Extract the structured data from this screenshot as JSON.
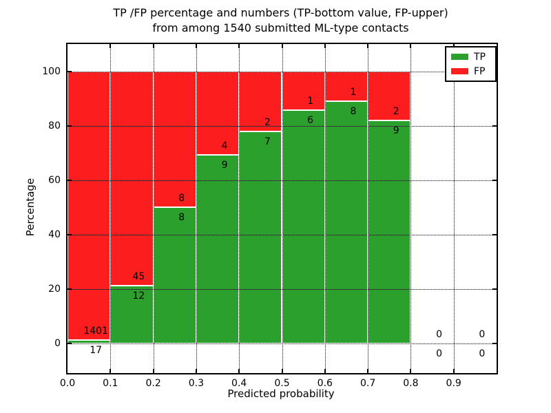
{
  "title": {
    "line1": "TP /FP percentage and numbers (TP-bottom value, FP-upper)",
    "line2": "from among 1540 submitted ML-type contacts"
  },
  "axes": {
    "xlabel": "Predicted probability",
    "ylabel": "Percentage",
    "ytick_labels": [
      "0",
      "20",
      "40",
      "60",
      "80",
      "100"
    ],
    "ytick_values": [
      0,
      20,
      40,
      60,
      80,
      100
    ],
    "xtick_labels": [
      "0.0",
      "0.1",
      "0.2",
      "0.3",
      "0.4",
      "0.5",
      "0.6",
      "0.7",
      "0.8",
      "0.9"
    ],
    "xtick_values": [
      0.0,
      0.1,
      0.2,
      0.3,
      0.4,
      0.5,
      0.6,
      0.7,
      0.8,
      0.9
    ]
  },
  "legend": {
    "items": [
      {
        "label": "TP",
        "color": "#2ca02c"
      },
      {
        "label": "FP",
        "color": "#fc1e1e"
      }
    ]
  },
  "colors": {
    "tp": "#2ca02c",
    "fp": "#fc1e1e",
    "grid": "#000000",
    "bar_edge": "#ffffff",
    "background": "#ffffff"
  },
  "chart_data": {
    "type": "bar",
    "stacked": true,
    "normalized_to_percent": true,
    "title": "TP /FP percentage and numbers (TP-bottom value, FP-upper) from among 1540 submitted ML-type contacts",
    "xlabel": "Predicted probability",
    "ylabel": "Percentage",
    "xlim": [
      0.0,
      1.0
    ],
    "ylim": [
      -11,
      110
    ],
    "grid": true,
    "legend_position": "upper right",
    "bin_width": 0.1,
    "total_contacts": 1540,
    "bins": [
      {
        "x0": 0.0,
        "x1": 0.1,
        "tp": 17,
        "fp": 1401,
        "tp_pct": 1.2
      },
      {
        "x0": 0.1,
        "x1": 0.2,
        "tp": 12,
        "fp": 45,
        "tp_pct": 21.1
      },
      {
        "x0": 0.2,
        "x1": 0.3,
        "tp": 8,
        "fp": 8,
        "tp_pct": 50.0
      },
      {
        "x0": 0.3,
        "x1": 0.4,
        "tp": 9,
        "fp": 4,
        "tp_pct": 69.2
      },
      {
        "x0": 0.4,
        "x1": 0.5,
        "tp": 7,
        "fp": 2,
        "tp_pct": 77.8
      },
      {
        "x0": 0.5,
        "x1": 0.6,
        "tp": 6,
        "fp": 1,
        "tp_pct": 85.7
      },
      {
        "x0": 0.6,
        "x1": 0.7,
        "tp": 8,
        "fp": 1,
        "tp_pct": 88.9
      },
      {
        "x0": 0.7,
        "x1": 0.8,
        "tp": 9,
        "fp": 2,
        "tp_pct": 81.8
      },
      {
        "x0": 0.8,
        "x1": 0.9,
        "tp": 0,
        "fp": 0,
        "tp_pct": 0.0
      },
      {
        "x0": 0.9,
        "x1": 1.0,
        "tp": 0,
        "fp": 0,
        "tp_pct": 0.0
      }
    ],
    "series": [
      {
        "name": "TP",
        "color": "#2ca02c",
        "counts": [
          17,
          12,
          8,
          9,
          7,
          6,
          8,
          9,
          0,
          0
        ]
      },
      {
        "name": "FP",
        "color": "#fc1e1e",
        "counts": [
          1401,
          45,
          8,
          4,
          2,
          1,
          1,
          2,
          0,
          0
        ]
      }
    ]
  }
}
